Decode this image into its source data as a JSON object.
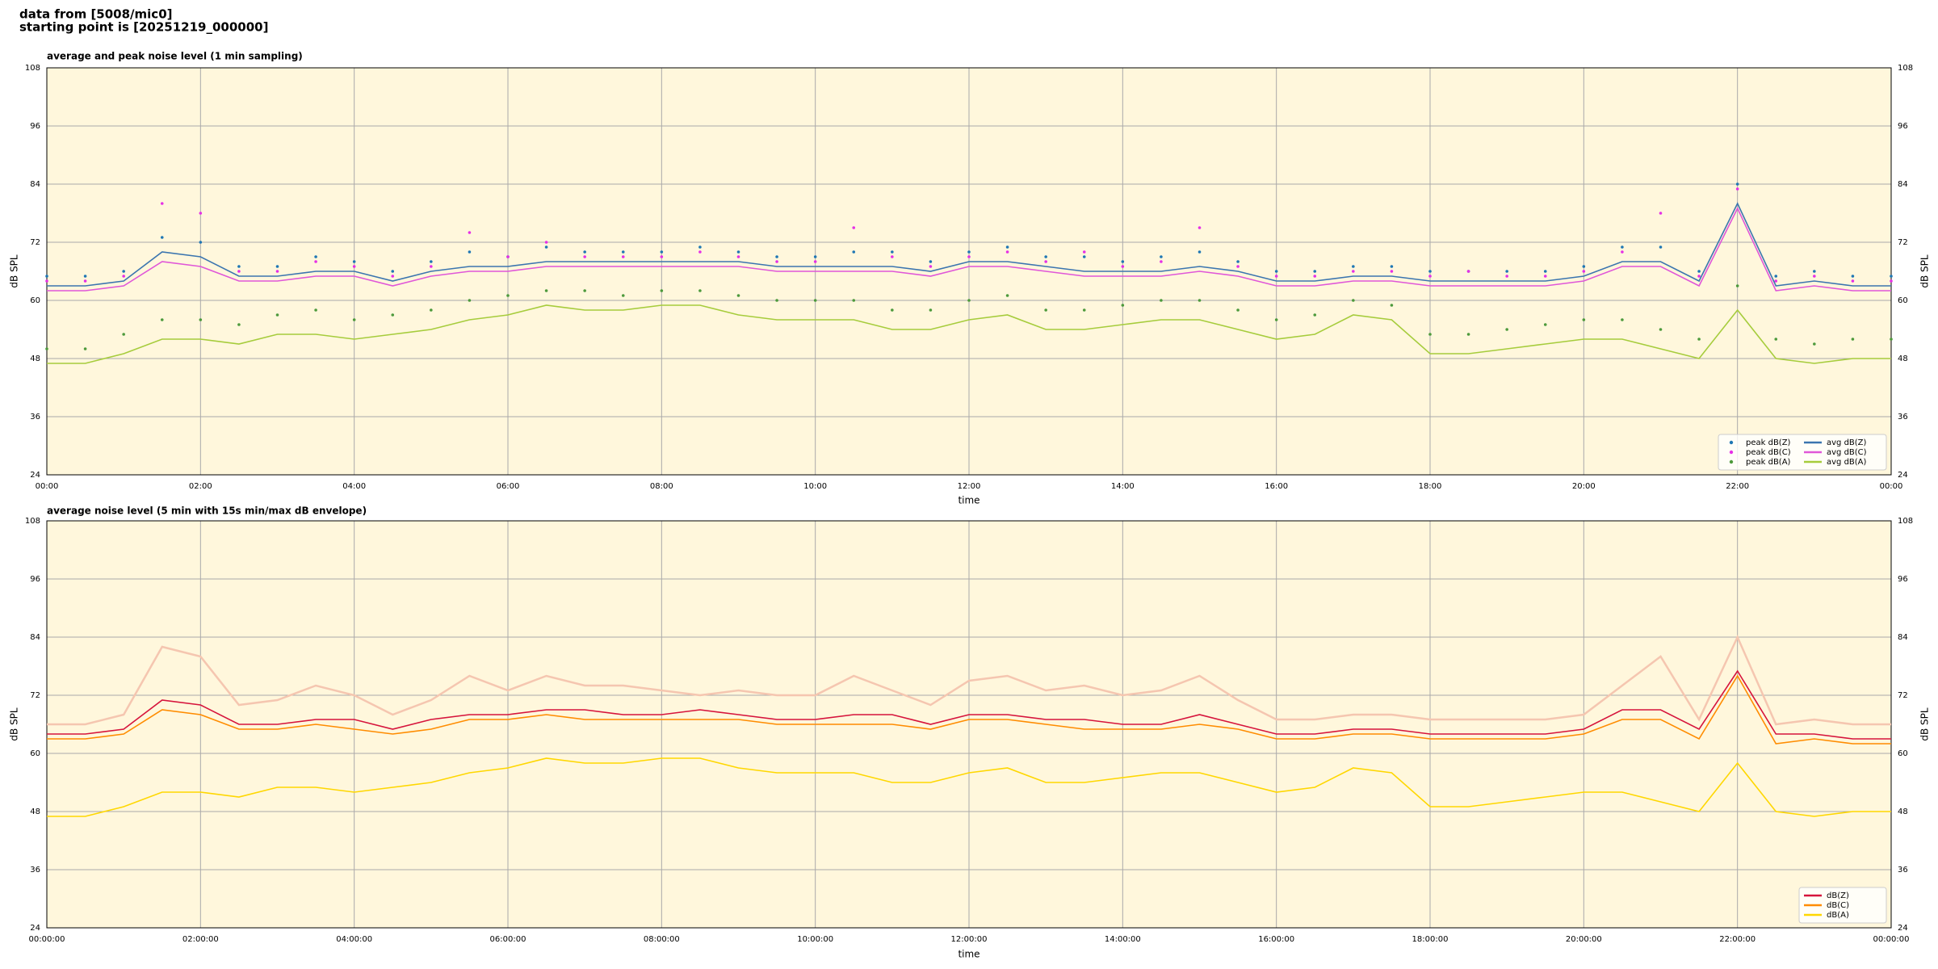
{
  "header": {
    "line1": "data from [5008/mic0]",
    "line2": "starting point is [20251219_000000]"
  },
  "chart_data": [
    {
      "type": "line",
      "title": "average and peak noise level (1 min sampling)",
      "xlabel": "time",
      "ylabel": "dB SPL",
      "x": [
        0,
        0.5,
        1,
        1.5,
        2,
        2.5,
        3,
        3.5,
        4,
        4.5,
        5,
        5.5,
        6,
        6.5,
        7,
        7.5,
        8,
        8.5,
        9,
        9.5,
        10,
        10.5,
        11,
        11.5,
        12,
        12.5,
        13,
        13.5,
        14,
        14.5,
        15,
        15.5,
        16,
        16.5,
        17,
        17.5,
        18,
        18.5,
        19,
        19.5,
        20,
        20.5,
        21,
        21.5,
        22,
        22.5,
        23,
        23.5,
        24
      ],
      "series": [
        {
          "name": "peak dB(Z)",
          "style": "scatter",
          "color": "#1f77b4",
          "values": [
            65,
            65,
            66,
            73,
            72,
            67,
            67,
            69,
            68,
            66,
            68,
            70,
            69,
            71,
            70,
            70,
            70,
            71,
            70,
            69,
            69,
            70,
            70,
            68,
            70,
            71,
            69,
            69,
            68,
            69,
            70,
            68,
            66,
            66,
            67,
            67,
            66,
            66,
            66,
            66,
            67,
            71,
            71,
            66,
            84,
            65,
            66,
            65,
            65
          ]
        },
        {
          "name": "peak dB(C)",
          "style": "scatter",
          "color": "#e630e6",
          "values": [
            64,
            64,
            65,
            80,
            78,
            66,
            66,
            68,
            67,
            65,
            67,
            74,
            69,
            72,
            69,
            69,
            69,
            70,
            69,
            68,
            68,
            75,
            69,
            67,
            69,
            70,
            68,
            70,
            67,
            68,
            75,
            67,
            65,
            65,
            66,
            66,
            65,
            66,
            65,
            65,
            66,
            70,
            78,
            65,
            83,
            64,
            65,
            64,
            64
          ]
        },
        {
          "name": "peak dB(A)",
          "style": "scatter",
          "color": "#4d9a3c",
          "values": [
            50,
            50,
            53,
            56,
            56,
            55,
            57,
            58,
            56,
            57,
            58,
            60,
            61,
            62,
            62,
            61,
            62,
            62,
            61,
            60,
            60,
            60,
            58,
            58,
            60,
            61,
            58,
            58,
            59,
            60,
            60,
            58,
            56,
            57,
            60,
            59,
            53,
            53,
            54,
            55,
            56,
            56,
            54,
            52,
            63,
            52,
            51,
            52,
            52
          ]
        },
        {
          "name": "avg dB(Z)",
          "style": "line",
          "color": "#3b75af",
          "values": [
            63,
            63,
            64,
            70,
            69,
            65,
            65,
            66,
            66,
            64,
            66,
            67,
            67,
            68,
            68,
            68,
            68,
            68,
            68,
            67,
            67,
            67,
            67,
            66,
            68,
            68,
            67,
            66,
            66,
            66,
            67,
            66,
            64,
            64,
            65,
            65,
            64,
            64,
            64,
            64,
            65,
            68,
            68,
            64,
            80,
            63,
            64,
            63,
            63
          ]
        },
        {
          "name": "avg dB(C)",
          "style": "line",
          "color": "#e057d8",
          "values": [
            62,
            62,
            63,
            68,
            67,
            64,
            64,
            65,
            65,
            63,
            65,
            66,
            66,
            67,
            67,
            67,
            67,
            67,
            67,
            66,
            66,
            66,
            66,
            65,
            67,
            67,
            66,
            65,
            65,
            65,
            66,
            65,
            63,
            63,
            64,
            64,
            63,
            63,
            63,
            63,
            64,
            67,
            67,
            63,
            79,
            62,
            63,
            62,
            62
          ]
        },
        {
          "name": "avg dB(A)",
          "style": "line",
          "color": "#a6cc3c",
          "values": [
            47,
            47,
            49,
            52,
            52,
            51,
            53,
            53,
            52,
            53,
            54,
            56,
            57,
            59,
            58,
            58,
            59,
            59,
            57,
            56,
            56,
            56,
            54,
            54,
            56,
            57,
            54,
            54,
            55,
            56,
            56,
            54,
            52,
            53,
            57,
            56,
            49,
            49,
            50,
            51,
            52,
            52,
            50,
            48,
            58,
            48,
            47,
            48,
            48
          ]
        }
      ],
      "xlim": [
        0,
        24
      ],
      "xticks": [
        {
          "value": 0,
          "label": "00:00"
        },
        {
          "value": 2,
          "label": "02:00"
        },
        {
          "value": 4,
          "label": "04:00"
        },
        {
          "value": 6,
          "label": "06:00"
        },
        {
          "value": 8,
          "label": "08:00"
        },
        {
          "value": 10,
          "label": "10:00"
        },
        {
          "value": 12,
          "label": "12:00"
        },
        {
          "value": 14,
          "label": "14:00"
        },
        {
          "value": 16,
          "label": "16:00"
        },
        {
          "value": 18,
          "label": "18:00"
        },
        {
          "value": 20,
          "label": "20:00"
        },
        {
          "value": 22,
          "label": "22:00"
        },
        {
          "value": 24,
          "label": "00:00"
        }
      ],
      "ylim": [
        24,
        108
      ],
      "yticks": [
        24,
        36,
        48,
        60,
        72,
        84,
        96,
        108
      ],
      "grid": true,
      "legend": "lower right",
      "legend_ncol": 2,
      "background": "#fff7dc"
    },
    {
      "type": "line",
      "title": "average noise level (5 min with 15s min/max dB envelope)",
      "xlabel": "time",
      "ylabel": "dB SPL",
      "x": [
        0,
        0.5,
        1,
        1.5,
        2,
        2.5,
        3,
        3.5,
        4,
        4.5,
        5,
        5.5,
        6,
        6.5,
        7,
        7.5,
        8,
        8.5,
        9,
        9.5,
        10,
        10.5,
        11,
        11.5,
        12,
        12.5,
        13,
        13.5,
        14,
        14.5,
        15,
        15.5,
        16,
        16.5,
        17,
        17.5,
        18,
        18.5,
        19,
        19.5,
        20,
        20.5,
        21,
        21.5,
        22,
        22.5,
        23,
        23.5,
        24
      ],
      "series": [
        {
          "style": "line",
          "color": "#f5c6b0",
          "values": [
            66,
            66,
            68,
            82,
            80,
            70,
            71,
            74,
            72,
            68,
            71,
            76,
            73,
            76,
            74,
            74,
            73,
            72,
            73,
            72,
            72,
            76,
            73,
            70,
            75,
            76,
            73,
            74,
            72,
            73,
            76,
            71,
            67,
            67,
            68,
            68,
            67,
            67,
            67,
            67,
            68,
            74,
            80,
            67,
            84,
            66,
            67,
            66,
            66
          ]
        },
        {
          "name": "dB(Z)",
          "style": "line",
          "color": "#d6143c",
          "values": [
            64,
            64,
            65,
            71,
            70,
            66,
            66,
            67,
            67,
            65,
            67,
            68,
            68,
            69,
            69,
            68,
            68,
            69,
            68,
            67,
            67,
            68,
            68,
            66,
            68,
            68,
            67,
            67,
            66,
            66,
            68,
            66,
            64,
            64,
            65,
            65,
            64,
            64,
            64,
            64,
            65,
            69,
            69,
            65,
            77,
            64,
            64,
            63,
            63
          ]
        },
        {
          "name": "dB(C)",
          "style": "line",
          "color": "#ff8c00",
          "values": [
            63,
            63,
            64,
            69,
            68,
            65,
            65,
            66,
            65,
            64,
            65,
            67,
            67,
            68,
            67,
            67,
            67,
            67,
            67,
            66,
            66,
            66,
            66,
            65,
            67,
            67,
            66,
            65,
            65,
            65,
            66,
            65,
            63,
            63,
            64,
            64,
            63,
            63,
            63,
            63,
            64,
            67,
            67,
            63,
            76,
            62,
            63,
            62,
            62
          ]
        },
        {
          "name": "dB(A)",
          "style": "line",
          "color": "#ffd700",
          "values": [
            47,
            47,
            49,
            52,
            52,
            51,
            53,
            53,
            52,
            53,
            54,
            56,
            57,
            59,
            58,
            58,
            59,
            59,
            57,
            56,
            56,
            56,
            54,
            54,
            56,
            57,
            54,
            54,
            55,
            56,
            56,
            54,
            52,
            53,
            57,
            56,
            49,
            49,
            50,
            51,
            52,
            52,
            50,
            48,
            58,
            48,
            47,
            48,
            48
          ]
        }
      ],
      "xlim": [
        0,
        24
      ],
      "xticks": [
        {
          "value": 0,
          "label": "00:00:00"
        },
        {
          "value": 2,
          "label": "02:00:00"
        },
        {
          "value": 4,
          "label": "04:00:00"
        },
        {
          "value": 6,
          "label": "06:00:00"
        },
        {
          "value": 8,
          "label": "08:00:00"
        },
        {
          "value": 10,
          "label": "10:00:00"
        },
        {
          "value": 12,
          "label": "12:00:00"
        },
        {
          "value": 14,
          "label": "14:00:00"
        },
        {
          "value": 16,
          "label": "16:00:00"
        },
        {
          "value": 18,
          "label": "18:00:00"
        },
        {
          "value": 20,
          "label": "20:00:00"
        },
        {
          "value": 22,
          "label": "22:00:00"
        },
        {
          "value": 24,
          "label": "00:00:00"
        }
      ],
      "ylim": [
        24,
        108
      ],
      "yticks": [
        24,
        36,
        48,
        60,
        72,
        84,
        96,
        108
      ],
      "grid": true,
      "legend": "lower right",
      "legend_ncol": 1,
      "background": "#fff7dc"
    }
  ]
}
